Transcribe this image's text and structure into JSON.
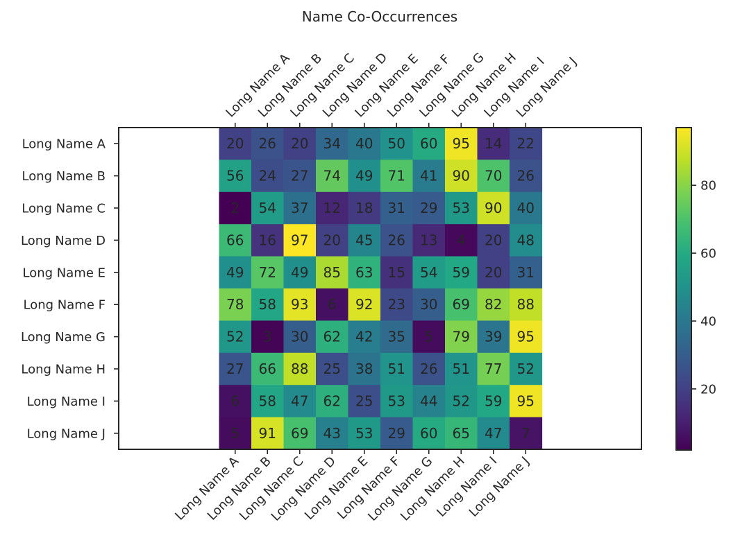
{
  "chart_data": {
    "type": "heatmap",
    "title": "Name Co-Occurrences",
    "x_categories": [
      "Long Name A",
      "Long Name B",
      "Long Name C",
      "Long Name D",
      "Long Name E",
      "Long Name F",
      "Long Name G",
      "Long Name H",
      "Long Name I",
      "Long Name J"
    ],
    "y_categories": [
      "Long Name A",
      "Long Name B",
      "Long Name C",
      "Long Name D",
      "Long Name E",
      "Long Name F",
      "Long Name G",
      "Long Name H",
      "Long Name I",
      "Long Name J"
    ],
    "values": [
      [
        20,
        26,
        20,
        34,
        40,
        50,
        60,
        95,
        14,
        22
      ],
      [
        56,
        24,
        27,
        74,
        49,
        71,
        41,
        90,
        70,
        26
      ],
      [
        2,
        54,
        37,
        12,
        18,
        31,
        29,
        53,
        90,
        40
      ],
      [
        66,
        16,
        97,
        20,
        45,
        26,
        13,
        4,
        20,
        48
      ],
      [
        49,
        72,
        49,
        85,
        63,
        15,
        54,
        59,
        20,
        31
      ],
      [
        78,
        58,
        93,
        6,
        92,
        23,
        30,
        69,
        82,
        88
      ],
      [
        52,
        3,
        30,
        62,
        42,
        35,
        5,
        79,
        39,
        95
      ],
      [
        27,
        66,
        88,
        25,
        38,
        51,
        26,
        51,
        77,
        52
      ],
      [
        6,
        58,
        47,
        62,
        25,
        53,
        44,
        52,
        59,
        95
      ],
      [
        5,
        91,
        69,
        43,
        53,
        29,
        60,
        65,
        47,
        7
      ]
    ],
    "colormap": "viridis",
    "color_range": [
      2,
      97
    ],
    "colorbar_ticks": [
      20,
      40,
      60,
      80
    ],
    "tick_labels_top": true,
    "tick_labels_bottom": true,
    "x_tick_rotation_deg": 45,
    "cell_text_color": "#262626",
    "grid": false
  }
}
